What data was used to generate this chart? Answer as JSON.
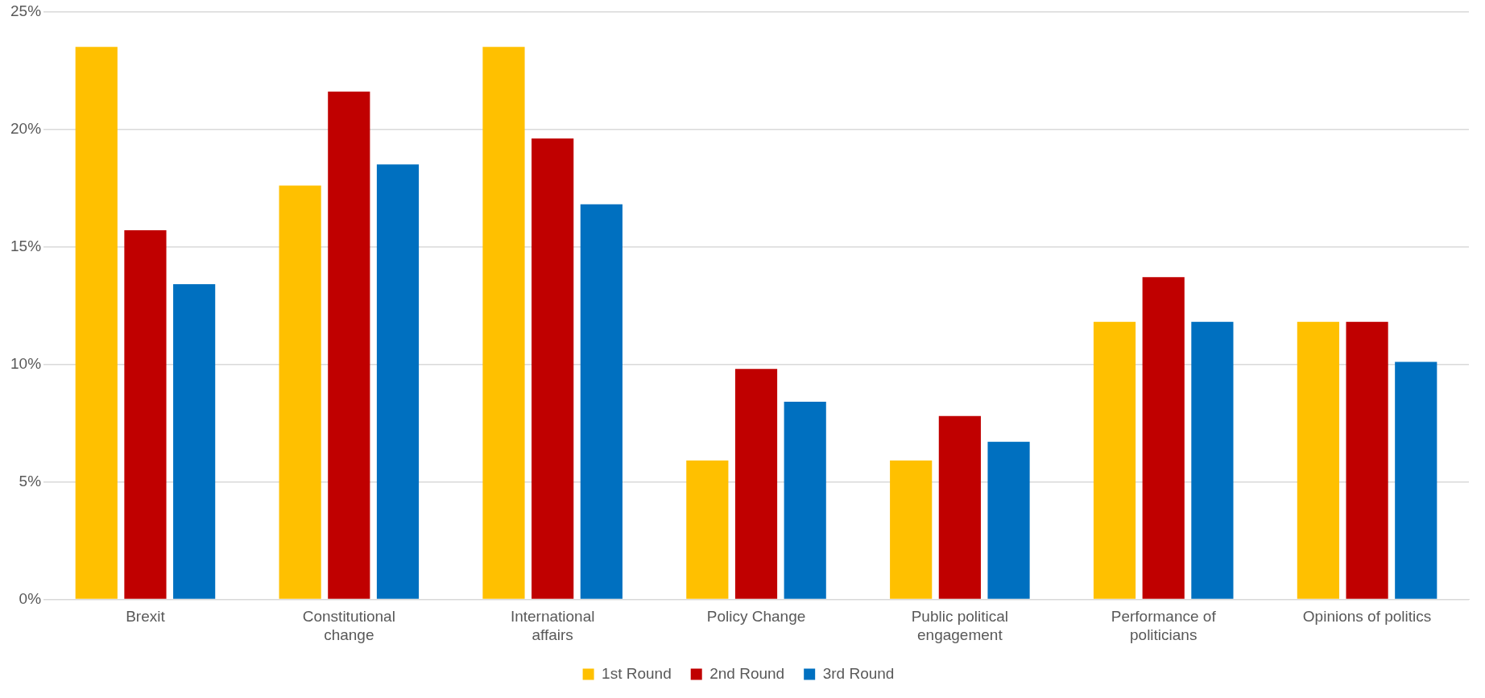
{
  "chart_data": {
    "type": "bar",
    "categories": [
      "Brexit",
      "Constitutional change",
      "International affairs",
      "Policy Change",
      "Public political engagement",
      "Performance of politicians",
      "Opinions of politics"
    ],
    "series": [
      {
        "name": "1st Round",
        "color": "#ffc000",
        "values": [
          23.5,
          17.6,
          23.5,
          5.9,
          5.9,
          11.8,
          11.8
        ]
      },
      {
        "name": "2nd Round",
        "color": "#c00000",
        "values": [
          15.7,
          21.6,
          19.6,
          9.8,
          7.8,
          13.7,
          11.8
        ]
      },
      {
        "name": "3rd Round",
        "color": "#0070c0",
        "values": [
          13.4,
          18.5,
          16.8,
          8.4,
          6.7,
          11.8,
          10.1
        ]
      }
    ],
    "ylim": [
      0,
      25
    ],
    "yticks": [
      {
        "value": 0,
        "label": "0%"
      },
      {
        "value": 5,
        "label": "5%"
      },
      {
        "value": 10,
        "label": "10%"
      },
      {
        "value": 15,
        "label": "15%"
      },
      {
        "value": 20,
        "label": "20%"
      },
      {
        "value": 25,
        "label": "25%"
      }
    ],
    "grid": "y",
    "legend": "bottom"
  }
}
